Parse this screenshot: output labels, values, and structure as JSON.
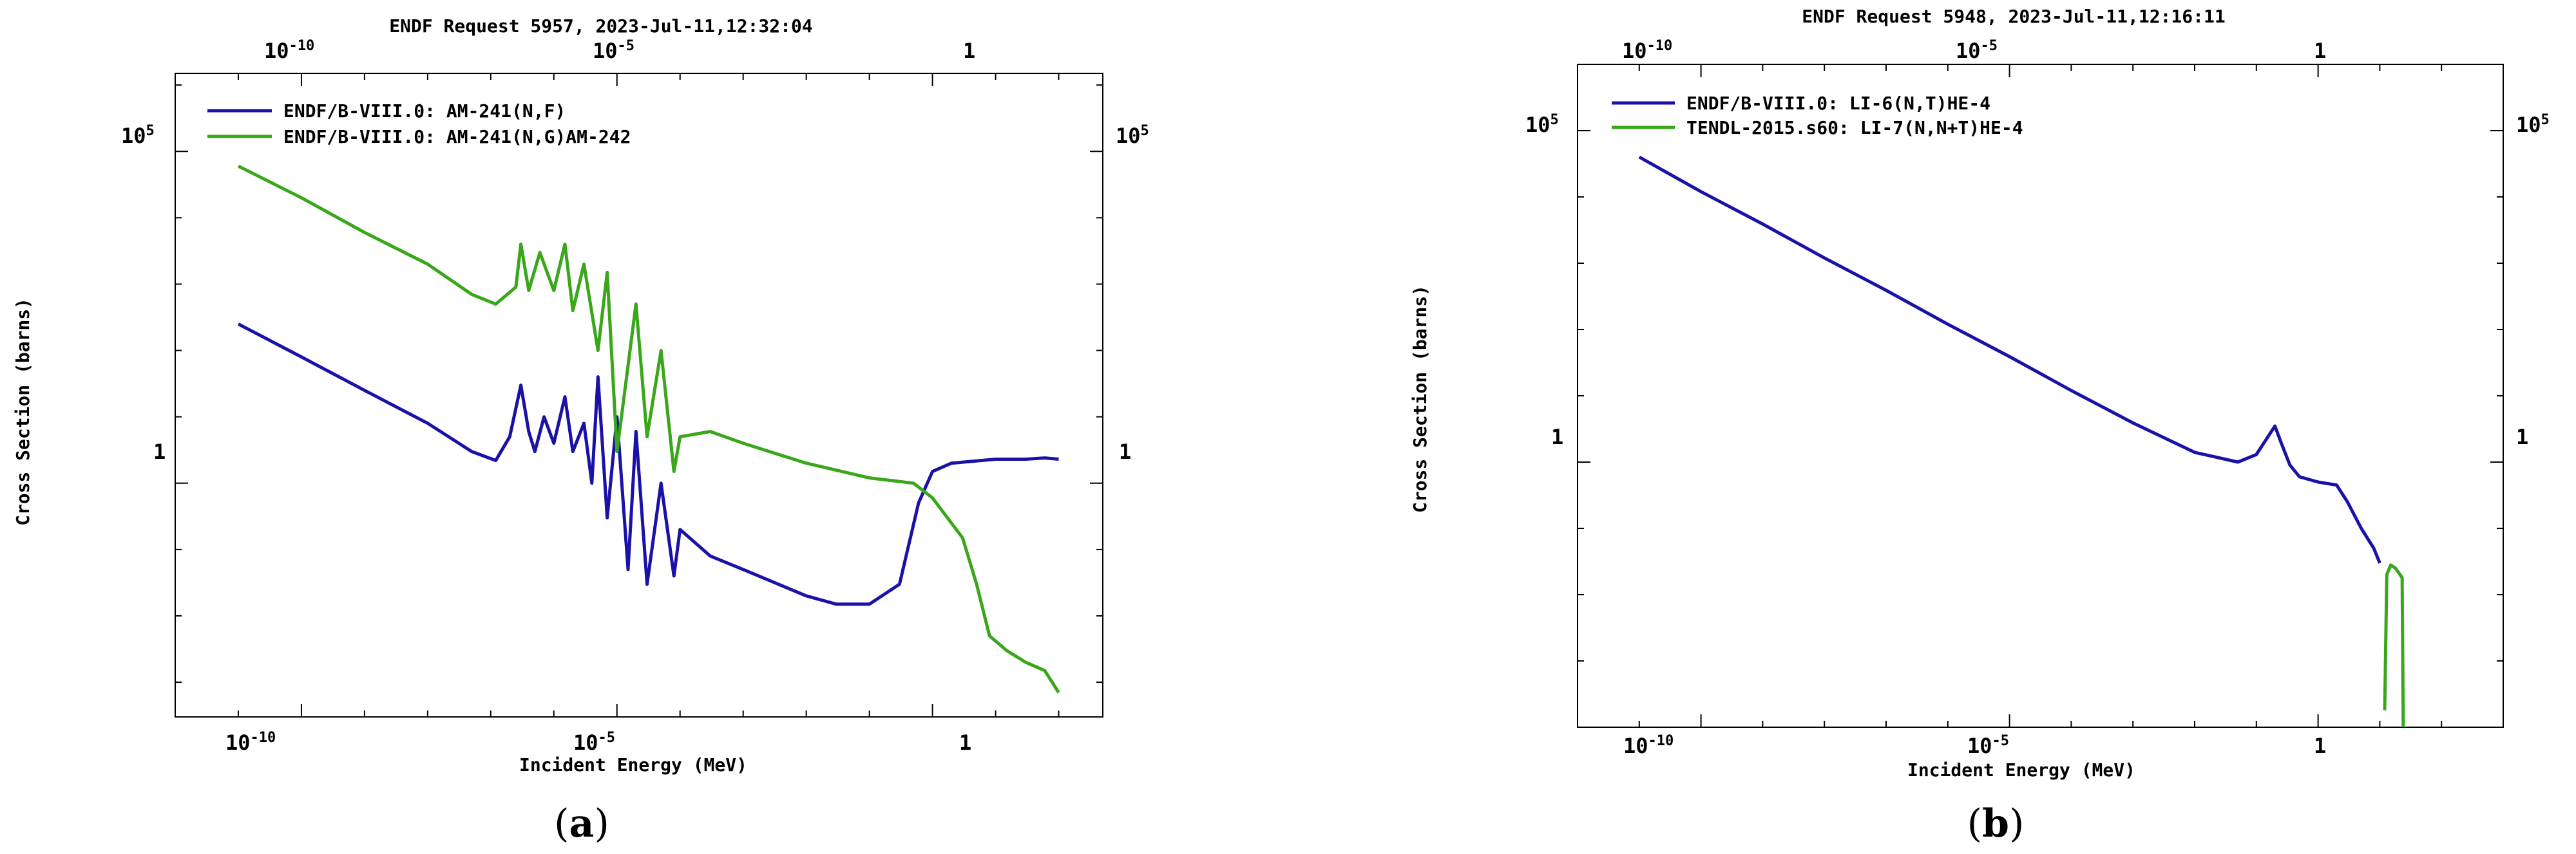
{
  "chart_data": [
    {
      "type": "line",
      "panel_label": "a",
      "title": "ENDF Request 5957, 2023-Jul-11,12:32:04",
      "xlabel": "Incident Energy (MeV)",
      "ylabel": "Cross Section (barns)",
      "x_scale": "log",
      "y_scale": "log",
      "xlim": [
        1e-12,
        500
      ],
      "ylim": [
        0.0003,
        1500000
      ],
      "x_ticks": [
        {
          "value": 1e-10,
          "base": "10",
          "exp": "-10"
        },
        {
          "value": 1e-05,
          "base": "10",
          "exp": "-5"
        },
        {
          "value": 1,
          "base": "1",
          "exp": ""
        }
      ],
      "y_ticks": [
        {
          "value": 100000,
          "base": "10",
          "exp": "5"
        },
        {
          "value": 1,
          "base": "1",
          "exp": ""
        }
      ],
      "legend_position": "top-left",
      "series": [
        {
          "name": "ENDF/B-VIII.0: AM-241(N,F)",
          "color": "#1a12a8",
          "points": [
            [
              1e-11,
              250
            ],
            [
              1e-10,
              80
            ],
            [
              1e-09,
              25
            ],
            [
              1e-08,
              8
            ],
            [
              5e-08,
              3
            ],
            [
              1.2e-07,
              2.2
            ],
            [
              2e-07,
              5
            ],
            [
              3e-07,
              30
            ],
            [
              4e-07,
              6
            ],
            [
              5e-07,
              3
            ],
            [
              7e-07,
              10
            ],
            [
              1e-06,
              4
            ],
            [
              1.5e-06,
              20
            ],
            [
              2e-06,
              3
            ],
            [
              3e-06,
              8
            ],
            [
              4e-06,
              1
            ],
            [
              5e-06,
              40
            ],
            [
              7e-06,
              0.3
            ],
            [
              1e-05,
              10
            ],
            [
              1.5e-05,
              0.05
            ],
            [
              2e-05,
              6
            ],
            [
              3e-05,
              0.03
            ],
            [
              5e-05,
              1
            ],
            [
              8e-05,
              0.04
            ],
            [
              0.0001,
              0.2
            ],
            [
              0.0003,
              0.08
            ],
            [
              0.001,
              0.05
            ],
            [
              0.01,
              0.02
            ],
            [
              0.03,
              0.015
            ],
            [
              0.1,
              0.015
            ],
            [
              0.3,
              0.03
            ],
            [
              0.6,
              0.5
            ],
            [
              1,
              1.5
            ],
            [
              2,
              2
            ],
            [
              10,
              2.3
            ],
            [
              30,
              2.3
            ],
            [
              60,
              2.4
            ],
            [
              100,
              2.3
            ]
          ]
        },
        {
          "name": "ENDF/B-VIII.0: AM-241(N,G)AM-242",
          "color": "#3aa61a",
          "points": [
            [
              1e-11,
              60000
            ],
            [
              1e-10,
              20000
            ],
            [
              1e-09,
              6000
            ],
            [
              1e-08,
              2000
            ],
            [
              5e-08,
              700
            ],
            [
              1.2e-07,
              500
            ],
            [
              2.5e-07,
              900
            ],
            [
              3e-07,
              4000
            ],
            [
              4e-07,
              800
            ],
            [
              6e-07,
              3000
            ],
            [
              1e-06,
              800
            ],
            [
              1.5e-06,
              4000
            ],
            [
              2e-06,
              400
            ],
            [
              3e-06,
              2000
            ],
            [
              5e-06,
              100
            ],
            [
              7e-06,
              1500
            ],
            [
              1e-05,
              3
            ],
            [
              2e-05,
              500
            ],
            [
              3e-05,
              5
            ],
            [
              5e-05,
              100
            ],
            [
              8e-05,
              1.5
            ],
            [
              0.0001,
              5
            ],
            [
              0.0003,
              6
            ],
            [
              0.001,
              4
            ],
            [
              0.01,
              2
            ],
            [
              0.1,
              1.2
            ],
            [
              0.5,
              1
            ],
            [
              1,
              0.6
            ],
            [
              3,
              0.15
            ],
            [
              5,
              0.03
            ],
            [
              8,
              0.005
            ],
            [
              15,
              0.003
            ],
            [
              30,
              0.002
            ],
            [
              60,
              0.0015
            ],
            [
              100,
              0.0007
            ]
          ]
        }
      ]
    },
    {
      "type": "line",
      "panel_label": "b",
      "title": "ENDF Request 5948, 2023-Jul-11,12:16:11",
      "xlabel": "Incident Energy (MeV)",
      "ylabel": "Cross Section (barns)",
      "x_scale": "log",
      "y_scale": "log",
      "xlim": [
        1e-12,
        1000
      ],
      "ylim": [
        0.0001,
        1000000
      ],
      "x_ticks": [
        {
          "value": 1e-10,
          "base": "10",
          "exp": "-10"
        },
        {
          "value": 1e-05,
          "base": "10",
          "exp": "-5"
        },
        {
          "value": 1,
          "base": "1",
          "exp": ""
        }
      ],
      "y_ticks": [
        {
          "value": 100000,
          "base": "10",
          "exp": "5"
        },
        {
          "value": 1,
          "base": "1",
          "exp": ""
        }
      ],
      "legend_position": "top-left",
      "series": [
        {
          "name": "ENDF/B-VIII.0: LI-6(N,T)HE-4",
          "color": "#1a12a8",
          "points": [
            [
              1e-11,
              40000
            ],
            [
              1e-10,
              12000
            ],
            [
              1e-09,
              3900
            ],
            [
              1e-08,
              1200
            ],
            [
              1e-07,
              390
            ],
            [
              1e-06,
              120
            ],
            [
              1e-05,
              39
            ],
            [
              0.0001,
              12
            ],
            [
              0.001,
              3.9
            ],
            [
              0.01,
              1.4
            ],
            [
              0.05,
              1.0
            ],
            [
              0.1,
              1.3
            ],
            [
              0.2,
              3.5
            ],
            [
              0.25,
              2
            ],
            [
              0.35,
              0.9
            ],
            [
              0.5,
              0.6
            ],
            [
              1,
              0.5
            ],
            [
              2,
              0.45
            ],
            [
              3,
              0.25
            ],
            [
              5,
              0.1
            ],
            [
              8,
              0.05
            ],
            [
              10,
              0.03
            ]
          ]
        },
        {
          "name": "TENDL-2015.s60: LI-7(N,N+T)HE-4",
          "color": "#3aa61a",
          "points": [
            [
              12,
              0.00018
            ],
            [
              13,
              0.02
            ],
            [
              15,
              0.028
            ],
            [
              18,
              0.025
            ],
            [
              23,
              0.018
            ],
            [
              24,
              0.0001
            ]
          ]
        }
      ]
    }
  ],
  "captions": [
    "a",
    "b"
  ]
}
